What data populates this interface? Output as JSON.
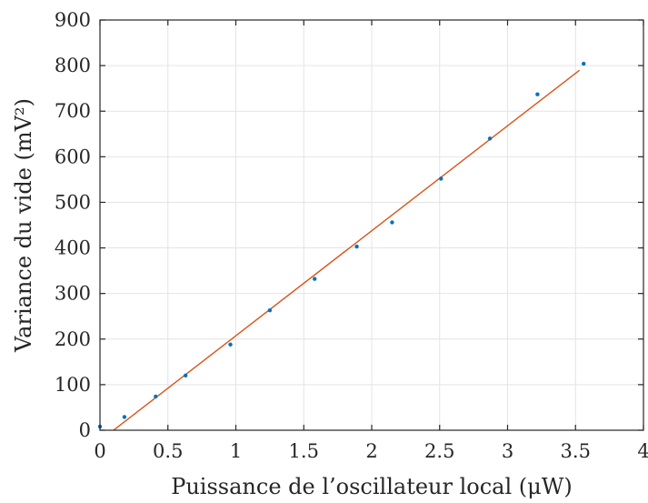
{
  "chart_data": {
    "type": "scatter",
    "xlabel": "Puissance de l’oscillateur local (μW)",
    "ylabel": "Variance du vide (mV²)",
    "xlim": [
      0,
      4
    ],
    "ylim": [
      0,
      900
    ],
    "x_ticks": [
      0,
      0.5,
      1,
      1.5,
      2,
      2.5,
      3,
      3.5,
      4
    ],
    "x_tick_labels": [
      "0",
      "0.5",
      "1",
      "1.5",
      "2",
      "2.5",
      "3",
      "3.5",
      "4"
    ],
    "y_ticks": [
      0,
      100,
      200,
      300,
      400,
      500,
      600,
      700,
      800,
      900
    ],
    "y_tick_labels": [
      "0",
      "100",
      "200",
      "300",
      "400",
      "500",
      "600",
      "700",
      "800",
      "900"
    ],
    "grid": true,
    "series": [
      {
        "type": "scatter",
        "color": "#0072bd",
        "points": [
          {
            "x": 0.0,
            "y": 8
          },
          {
            "x": 0.18,
            "y": 29
          },
          {
            "x": 0.41,
            "y": 74
          },
          {
            "x": 0.63,
            "y": 120
          },
          {
            "x": 0.96,
            "y": 188
          },
          {
            "x": 1.25,
            "y": 263
          },
          {
            "x": 1.58,
            "y": 332
          },
          {
            "x": 1.89,
            "y": 403
          },
          {
            "x": 2.15,
            "y": 456
          },
          {
            "x": 2.51,
            "y": 552
          },
          {
            "x": 2.87,
            "y": 640
          },
          {
            "x": 3.22,
            "y": 737
          },
          {
            "x": 3.56,
            "y": 804
          }
        ]
      },
      {
        "type": "line",
        "color": "#d95319",
        "points": [
          {
            "x": 0.1,
            "y": 0
          },
          {
            "x": 3.53,
            "y": 790
          }
        ]
      }
    ]
  }
}
